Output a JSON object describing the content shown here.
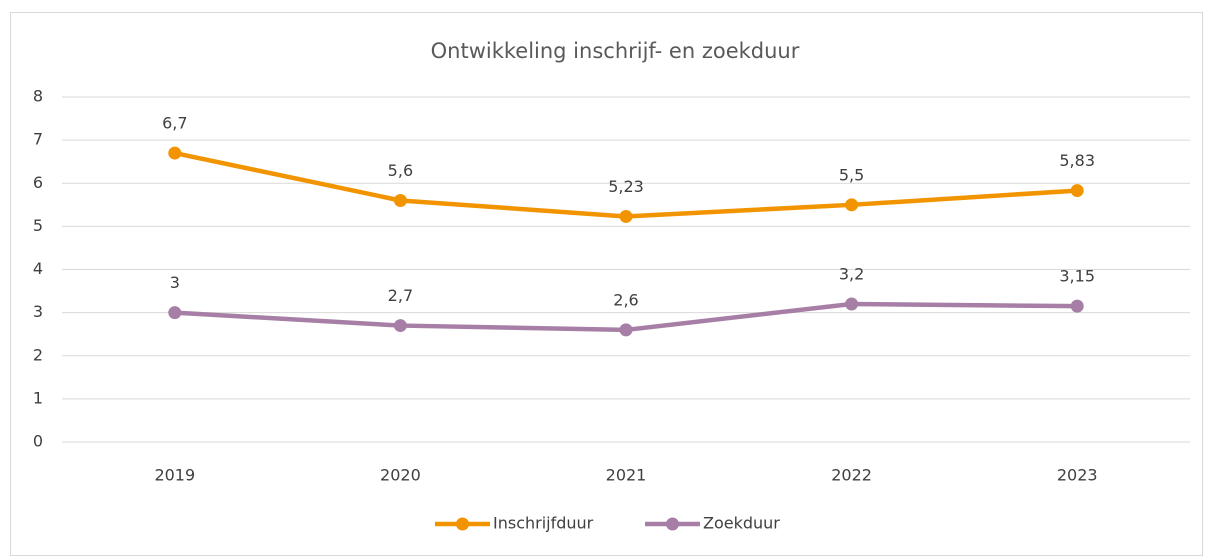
{
  "chart_data": {
    "type": "line",
    "title": "Ontwikkeling inschrijf- en zoekduur",
    "categories": [
      "2019",
      "2020",
      "2021",
      "2022",
      "2023"
    ],
    "series": [
      {
        "name": "Inschrijfduur",
        "color": "#f29400",
        "values": [
          6.7,
          5.6,
          5.23,
          5.5,
          5.83
        ],
        "value_labels": [
          "6,7",
          "5,6",
          "5,23",
          "5,5",
          "5,83"
        ]
      },
      {
        "name": "Zoekduur",
        "color": "#a77fa6",
        "values": [
          3,
          2.7,
          2.6,
          3.2,
          3.15
        ],
        "value_labels": [
          "3",
          "2,7",
          "2,6",
          "3,2",
          "3,15"
        ]
      }
    ],
    "ylim": [
      0,
      8
    ],
    "yticks": [
      0,
      1,
      2,
      3,
      4,
      5,
      6,
      7,
      8
    ],
    "grid": true,
    "legend": "bottom"
  }
}
